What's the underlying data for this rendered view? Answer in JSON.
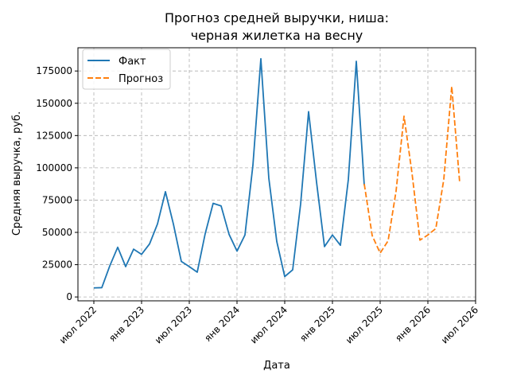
{
  "chart_data": {
    "type": "line",
    "title_line1": "Прогноз средней выручки, ниша:",
    "title_line2": "черная жилетка на весну",
    "xlabel": "Дата",
    "ylabel": "Средняя выручка, руб.",
    "x_ticks": [
      "июл 2022",
      "янв 2023",
      "июл 2023",
      "янв 2024",
      "июл 2024",
      "янв 2025",
      "июл 2025",
      "янв 2026",
      "июл 2026"
    ],
    "y_ticks": [
      "0",
      "25000",
      "50000",
      "75000",
      "100000",
      "125000",
      "150000",
      "175000"
    ],
    "ylim": [
      -3000,
      193000
    ],
    "xlim": [
      "2022-05",
      "2026-07"
    ],
    "grid": true,
    "legend_position": "top-left",
    "colors": {
      "actual": "#1f77b4",
      "forecast": "#ff7f0e"
    },
    "series": [
      {
        "name": "Факт",
        "style": "solid",
        "points": [
          [
            "2022-07",
            7000
          ],
          [
            "2022-08",
            7200
          ],
          [
            "2022-09",
            24000
          ],
          [
            "2022-10",
            38500
          ],
          [
            "2022-11",
            23500
          ],
          [
            "2022-12",
            37000
          ],
          [
            "2023-01",
            33000
          ],
          [
            "2023-02",
            41000
          ],
          [
            "2023-03",
            56500
          ],
          [
            "2023-04",
            81500
          ],
          [
            "2023-05",
            56500
          ],
          [
            "2023-06",
            27500
          ],
          [
            "2023-07",
            23500
          ],
          [
            "2023-08",
            19200
          ],
          [
            "2023-09",
            49000
          ],
          [
            "2023-10",
            72500
          ],
          [
            "2023-11",
            70500
          ],
          [
            "2023-12",
            48500
          ],
          [
            "2024-01",
            35500
          ],
          [
            "2024-02",
            48000
          ],
          [
            "2024-03",
            102000
          ],
          [
            "2024-04",
            184500
          ],
          [
            "2024-05",
            92000
          ],
          [
            "2024-06",
            43000
          ],
          [
            "2024-07",
            15800
          ],
          [
            "2024-08",
            21000
          ],
          [
            "2024-09",
            72000
          ],
          [
            "2024-10",
            143500
          ],
          [
            "2024-11",
            89000
          ],
          [
            "2024-12",
            39000
          ],
          [
            "2025-01",
            48000
          ],
          [
            "2025-02",
            40000
          ],
          [
            "2025-03",
            91000
          ],
          [
            "2025-04",
            182500
          ],
          [
            "2025-05",
            86500
          ]
        ]
      },
      {
        "name": "Прогноз",
        "style": "dashed",
        "points": [
          [
            "2025-05",
            87500
          ],
          [
            "2025-06",
            47500
          ],
          [
            "2025-07",
            34000
          ],
          [
            "2025-08",
            43500
          ],
          [
            "2025-09",
            82000
          ],
          [
            "2025-10",
            140000
          ],
          [
            "2025-11",
            96000
          ],
          [
            "2025-12",
            44000
          ],
          [
            "2026-01",
            48000
          ],
          [
            "2026-02",
            53000
          ],
          [
            "2026-03",
            91000
          ],
          [
            "2026-04",
            163000
          ],
          [
            "2026-05",
            88500
          ]
        ]
      }
    ]
  }
}
